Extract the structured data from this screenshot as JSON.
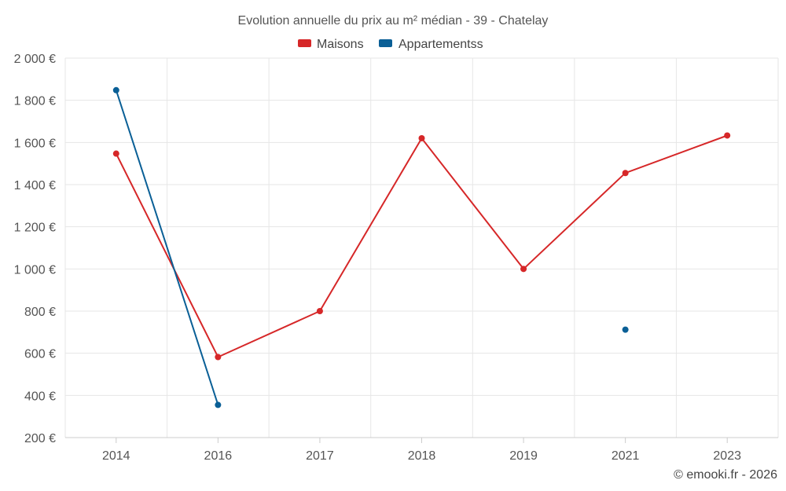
{
  "chart_data": {
    "type": "line",
    "title": "Evolution annuelle du prix au m² médian - 39 - Chatelay",
    "categories": [
      "2014",
      "2016",
      "2017",
      "2018",
      "2019",
      "2021",
      "2023"
    ],
    "y_tick_labels": [
      "2 000 €",
      "1 800 €",
      "1 600 €",
      "1 400 €",
      "1 200 €",
      "1 000 €",
      "800 €",
      "600 €",
      "400 €",
      "200 €"
    ],
    "y_ticks": [
      2000,
      1800,
      1600,
      1400,
      1200,
      1000,
      800,
      600,
      400,
      200
    ],
    "ylim": [
      200,
      2000
    ],
    "grid": true,
    "legend_position": "top-center",
    "series": [
      {
        "name": "Maisons",
        "color": "#d62728",
        "values": [
          1547,
          582,
          800,
          1620,
          1000,
          1455,
          1633
        ]
      },
      {
        "name": "Appartementss",
        "color": "#0a5f96",
        "values": [
          1848,
          355,
          null,
          null,
          null,
          712,
          null
        ]
      }
    ]
  },
  "credit": "© emooki.fr - 2026"
}
